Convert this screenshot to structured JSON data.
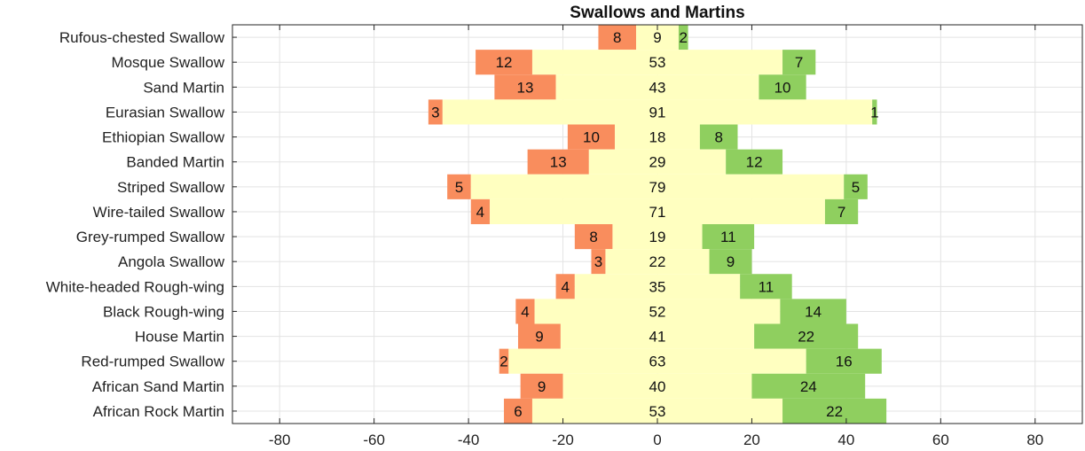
{
  "chart_data": {
    "type": "bar",
    "orientation": "horizontal",
    "stacked": "diverging",
    "title": "Swallows and Martins",
    "xlabel": "",
    "ylabel": "",
    "xlim": [
      -90,
      90
    ],
    "xticks": [
      -80,
      -60,
      -40,
      -20,
      0,
      20,
      40,
      60,
      80
    ],
    "xtick_labels": [
      "-80",
      "-60",
      "-40",
      "-20",
      "0",
      "20",
      "40",
      "60",
      "80"
    ],
    "grid": true,
    "legend": "none",
    "categories": [
      "Rufous-chested Swallow",
      "Mosque Swallow",
      "Sand Martin",
      "Eurasian Swallow",
      "Ethiopian Swallow",
      "Banded Martin",
      "Striped Swallow",
      "Wire-tailed Swallow",
      "Grey-rumped Swallow",
      "Angola Swallow",
      "White-headed Rough-wing",
      "Black Rough-wing",
      "House Martin",
      "Red-rumped Swallow",
      "African Sand Martin",
      "African Rock Martin"
    ],
    "series": [
      {
        "color": "#f98d5d",
        "placement": "left",
        "values": [
          8,
          12,
          13,
          3,
          10,
          13,
          5,
          4,
          8,
          3,
          4,
          4,
          9,
          2,
          9,
          6
        ]
      },
      {
        "color": "#ffffc0",
        "placement": "center",
        "values": [
          9,
          53,
          43,
          91,
          18,
          29,
          79,
          71,
          19,
          22,
          35,
          52,
          41,
          63,
          40,
          53
        ]
      },
      {
        "color": "#8fcf5f",
        "placement": "right",
        "values": [
          2,
          7,
          10,
          1,
          8,
          12,
          5,
          7,
          11,
          9,
          11,
          14,
          22,
          16,
          24,
          22
        ]
      }
    ]
  }
}
